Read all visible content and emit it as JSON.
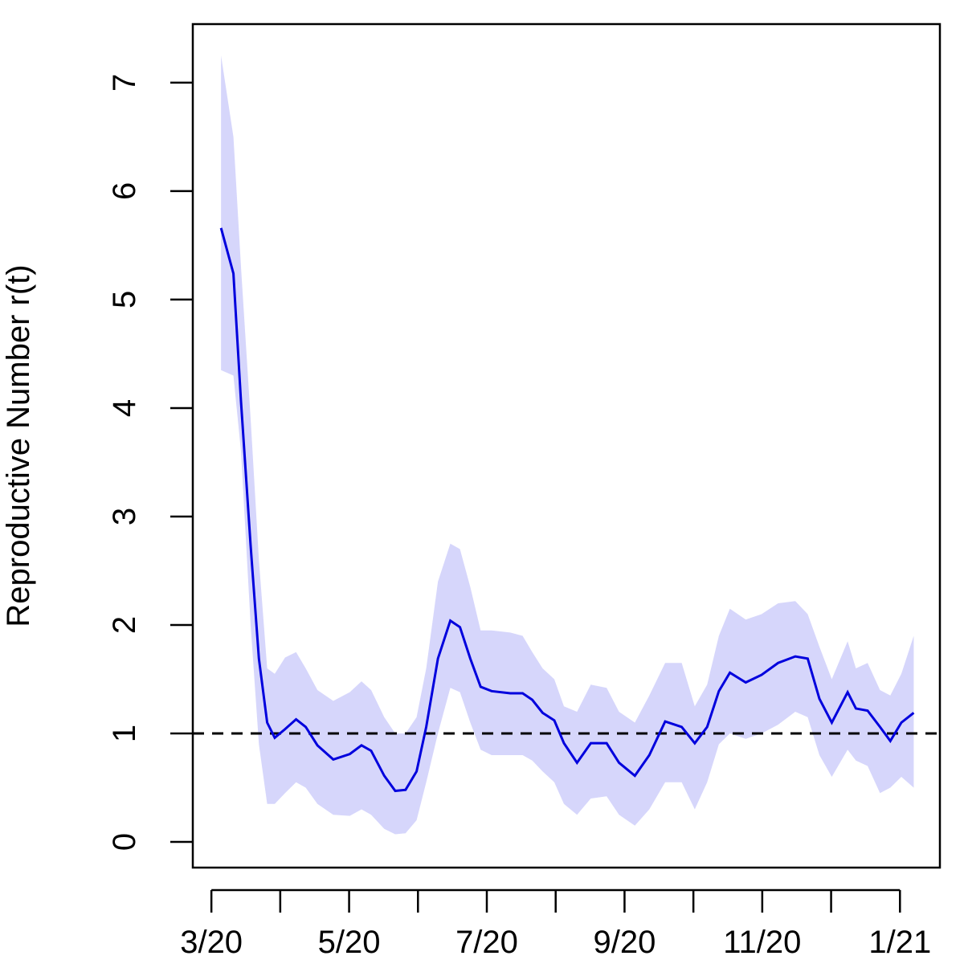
{
  "chart_data": {
    "type": "line",
    "ylabel": "Reproductive Number r(t)",
    "x": [
      0.14,
      0.32,
      0.43,
      0.57,
      0.69,
      0.81,
      0.92,
      1.07,
      1.23,
      1.37,
      1.54,
      1.77,
      2.01,
      2.18,
      2.32,
      2.51,
      2.67,
      2.82,
      2.98,
      3.12,
      3.29,
      3.47,
      3.61,
      3.76,
      3.91,
      4.07,
      4.34,
      4.52,
      4.66,
      4.81,
      4.98,
      5.12,
      5.31,
      5.51,
      5.74,
      5.92,
      6.15,
      6.36,
      6.59,
      6.83,
      7.02,
      7.2,
      7.37,
      7.53,
      7.76,
      7.99,
      8.23,
      8.48,
      8.66,
      8.83,
      9.01,
      9.24,
      9.36,
      9.53,
      9.71,
      9.86,
      10.02,
      10.2
    ],
    "values": [
      5.66,
      5.24,
      4.06,
      2.73,
      1.69,
      1.1,
      0.96,
      1.04,
      1.13,
      1.06,
      0.89,
      0.76,
      0.81,
      0.89,
      0.84,
      0.61,
      0.47,
      0.48,
      0.65,
      1.06,
      1.69,
      2.04,
      1.98,
      1.69,
      1.43,
      1.39,
      1.37,
      1.37,
      1.31,
      1.19,
      1.12,
      0.91,
      0.73,
      0.91,
      0.91,
      0.73,
      0.61,
      0.8,
      1.11,
      1.06,
      0.91,
      1.06,
      1.39,
      1.56,
      1.47,
      1.54,
      1.65,
      1.71,
      1.69,
      1.32,
      1.1,
      1.38,
      1.23,
      1.21,
      1.06,
      0.93,
      1.1,
      1.19
    ],
    "upper": [
      7.25,
      6.5,
      5.3,
      3.9,
      2.6,
      1.6,
      1.55,
      1.7,
      1.75,
      1.6,
      1.4,
      1.3,
      1.38,
      1.48,
      1.4,
      1.15,
      1.0,
      1.0,
      1.15,
      1.6,
      2.4,
      2.75,
      2.7,
      2.35,
      1.95,
      1.95,
      1.93,
      1.9,
      1.75,
      1.6,
      1.5,
      1.25,
      1.2,
      1.45,
      1.42,
      1.2,
      1.1,
      1.35,
      1.65,
      1.65,
      1.25,
      1.45,
      1.9,
      2.15,
      2.05,
      2.1,
      2.2,
      2.22,
      2.1,
      1.8,
      1.5,
      1.85,
      1.6,
      1.65,
      1.4,
      1.35,
      1.55,
      1.9
    ],
    "lower": [
      4.35,
      4.3,
      3.6,
      2.0,
      0.9,
      0.35,
      0.35,
      0.45,
      0.55,
      0.5,
      0.35,
      0.25,
      0.24,
      0.3,
      0.25,
      0.12,
      0.07,
      0.08,
      0.2,
      0.55,
      1.0,
      1.42,
      1.38,
      1.1,
      0.85,
      0.8,
      0.8,
      0.8,
      0.75,
      0.65,
      0.55,
      0.35,
      0.25,
      0.4,
      0.42,
      0.25,
      0.15,
      0.3,
      0.55,
      0.55,
      0.3,
      0.55,
      0.9,
      1.0,
      0.95,
      1.0,
      1.08,
      1.2,
      1.15,
      0.8,
      0.6,
      0.85,
      0.75,
      0.7,
      0.45,
      0.5,
      0.6,
      0.5
    ],
    "color": "#0000dd",
    "band_color": "#d6d6fb",
    "hline": 1,
    "xlim": [
      -0.27,
      10.58
    ],
    "ylim": [
      -0.237,
      7.54
    ],
    "xticks": [
      {
        "value": 0,
        "label": "3/20"
      },
      {
        "value": 2,
        "label": "5/20"
      },
      {
        "value": 4,
        "label": "7/20"
      },
      {
        "value": 6,
        "label": "9/20"
      },
      {
        "value": 8,
        "label": "11/20"
      },
      {
        "value": 10,
        "label": "1/21"
      }
    ],
    "xminor_ticks": [
      1,
      3,
      5,
      7,
      9
    ],
    "yticks": [
      0,
      1,
      2,
      3,
      4,
      5,
      6,
      7
    ]
  }
}
